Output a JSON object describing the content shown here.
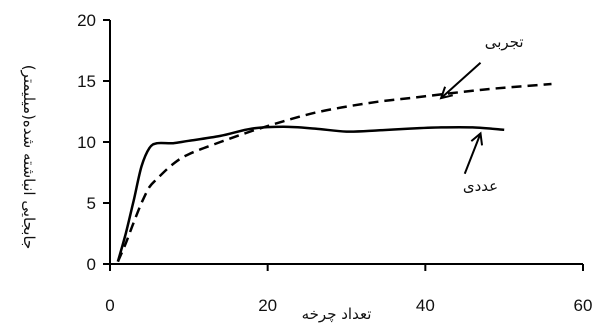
{
  "chart_data": {
    "type": "line",
    "xlabel": "تعداد چرخه",
    "ylabel": "جابجایی انباشته شده(میلیمتر)",
    "xlim": [
      0,
      60
    ],
    "ylim": [
      0,
      20
    ],
    "x_ticks": [
      0,
      20,
      40,
      60
    ],
    "y_ticks": [
      0,
      5,
      10,
      15,
      20
    ],
    "grid": false,
    "series": [
      {
        "name": "عددی",
        "style": "solid",
        "color": "#000000",
        "x": [
          1,
          2,
          3,
          4,
          5,
          6,
          8,
          10,
          14,
          18,
          22,
          26,
          30,
          34,
          38,
          42,
          46,
          50
        ],
        "y": [
          0.2,
          2.5,
          5.2,
          8.0,
          9.5,
          9.9,
          9.9,
          10.1,
          10.5,
          11.1,
          11.25,
          11.1,
          10.85,
          10.95,
          11.1,
          11.2,
          11.2,
          11.0
        ]
      },
      {
        "name": "تجربی",
        "style": "dashed",
        "color": "#000000",
        "x": [
          1,
          2,
          3,
          4,
          5,
          6,
          8,
          10,
          14,
          18,
          22,
          26,
          30,
          34,
          38,
          42,
          46,
          50,
          56
        ],
        "y": [
          0.2,
          1.7,
          3.4,
          5.0,
          6.3,
          7.0,
          8.2,
          9.0,
          10.0,
          10.9,
          11.7,
          12.4,
          12.9,
          13.3,
          13.6,
          13.9,
          14.2,
          14.45,
          14.75
        ]
      }
    ],
    "annotations": [
      {
        "text": "تجربی",
        "series": "تجربی",
        "label_at": [
          50,
          17.8
        ],
        "arrow_from": [
          47,
          16.5
        ],
        "arrow_to": [
          42,
          13.6
        ]
      },
      {
        "text": "عددی",
        "series": "عددی",
        "label_at": [
          47,
          6.0
        ],
        "arrow_from": [
          45,
          7.4
        ],
        "arrow_to": [
          47,
          10.7
        ]
      }
    ]
  }
}
